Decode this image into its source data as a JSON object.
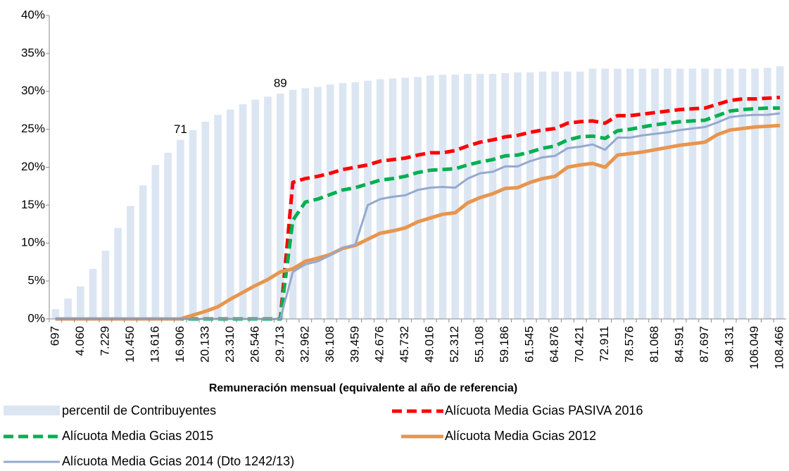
{
  "chart_data": {
    "type": "combo",
    "xlabel": "Remuneración mensual (equivalente al año de referencia)",
    "categories": [
      "697",
      null,
      "4.060",
      null,
      "7.229",
      null,
      "10.450",
      null,
      "13.616",
      null,
      "16.906",
      null,
      "20.133",
      null,
      "23.310",
      null,
      "26.546",
      null,
      "29.713",
      null,
      "32.962",
      null,
      "36.108",
      null,
      "39.459",
      null,
      "42.676",
      null,
      "45.732",
      null,
      "49.016",
      null,
      "52.312",
      null,
      "55.108",
      null,
      "59.186",
      null,
      "61.545",
      null,
      "64.876",
      null,
      "70.421",
      null,
      "72.911",
      null,
      "78.576",
      null,
      "81.068",
      null,
      "84.591",
      null,
      "87.697",
      null,
      "98.131",
      null,
      "106.049",
      null,
      "108.466"
    ],
    "ylim": [
      0,
      40
    ],
    "yticks": [
      {
        "value": 0,
        "label": "0%"
      },
      {
        "value": 5,
        "label": "5%"
      },
      {
        "value": 10,
        "label": "10%"
      },
      {
        "value": 15,
        "label": "15%"
      },
      {
        "value": 20,
        "label": "20%"
      },
      {
        "value": 25,
        "label": "25%"
      },
      {
        "value": 30,
        "label": "30%"
      },
      {
        "value": 35,
        "label": "35%"
      },
      {
        "value": 40,
        "label": "40%"
      }
    ],
    "series": [
      {
        "name": "percentil de Contribuyentes",
        "type": "bar",
        "color": "#dce6f2",
        "values": [
          1.3,
          2.7,
          4.3,
          6.6,
          9.0,
          12.0,
          14.9,
          17.6,
          20.3,
          21.9,
          23.6,
          24.9,
          26.0,
          26.9,
          27.6,
          28.3,
          28.9,
          29.3,
          29.7,
          30.2,
          30.4,
          30.6,
          30.9,
          31.1,
          31.2,
          31.4,
          31.6,
          31.7,
          31.8,
          31.9,
          32.1,
          32.2,
          32.2,
          32.3,
          32.3,
          32.3,
          32.4,
          32.5,
          32.5,
          32.6,
          32.6,
          32.6,
          32.6,
          33.0,
          33.0,
          33.0,
          33.0,
          33.0,
          33.0,
          33.0,
          33.0,
          33.0,
          33.0,
          33.0,
          33.0,
          33.0,
          33.0,
          33.1,
          33.3
        ]
      },
      {
        "name": "Alícuota Media Gcias PASIVA 2016",
        "type": "line",
        "dashed": true,
        "color": "#ff0000",
        "values": [
          0,
          0,
          0,
          0,
          0,
          0,
          0,
          0,
          0,
          0,
          0,
          0,
          0,
          0,
          0,
          0,
          0,
          0,
          0,
          18.0,
          18.5,
          18.8,
          19.2,
          19.7,
          20.0,
          20.3,
          20.8,
          21.0,
          21.2,
          21.6,
          21.9,
          21.9,
          22.2,
          22.8,
          23.3,
          23.6,
          24.0,
          24.2,
          24.6,
          24.9,
          25.1,
          25.8,
          26.0,
          26.1,
          25.8,
          26.8,
          26.8,
          27.0,
          27.2,
          27.4,
          27.6,
          27.7,
          27.8,
          28.3,
          28.8,
          29.0,
          29.0,
          29.1,
          29.2
        ]
      },
      {
        "name": "Alícuota Media Gcias 2015",
        "type": "line",
        "dashed": true,
        "color": "#00b050",
        "values": [
          0,
          0,
          0,
          0,
          0,
          0,
          0,
          0,
          0,
          0,
          0,
          0,
          0,
          0,
          0,
          0,
          0,
          0,
          0,
          13.0,
          15.4,
          15.8,
          16.4,
          17.0,
          17.3,
          17.8,
          18.3,
          18.5,
          18.8,
          19.3,
          19.6,
          19.7,
          19.8,
          20.3,
          20.7,
          21.0,
          21.5,
          21.6,
          22.0,
          22.5,
          22.8,
          23.6,
          24.0,
          24.1,
          23.8,
          24.8,
          25.0,
          25.3,
          25.6,
          25.8,
          26.0,
          26.1,
          26.2,
          26.8,
          27.4,
          27.6,
          27.7,
          27.8,
          27.8
        ]
      },
      {
        "name": "Alícuota Media Gcias 2012",
        "type": "line",
        "dashed": false,
        "color": "#e8954f",
        "values": [
          0,
          0,
          0,
          0,
          0,
          0,
          0,
          0,
          0,
          0,
          0,
          0.5,
          1.0,
          1.6,
          2.6,
          3.5,
          4.4,
          5.2,
          6.2,
          6.6,
          7.6,
          8.0,
          8.5,
          9.3,
          9.7,
          10.5,
          11.3,
          11.6,
          12.0,
          12.8,
          13.3,
          13.8,
          14.0,
          15.3,
          16.0,
          16.5,
          17.2,
          17.3,
          18.0,
          18.5,
          18.8,
          20.0,
          20.3,
          20.5,
          20.0,
          21.6,
          21.8,
          22.0,
          22.3,
          22.6,
          22.9,
          23.1,
          23.3,
          24.3,
          24.9,
          25.1,
          25.3,
          25.4,
          25.5
        ]
      },
      {
        "name": "Alícuota Media Gcias 2014 (Dto 1242/13)",
        "type": "line",
        "dashed": false,
        "color": "#95a9cd",
        "values": [
          0,
          0,
          0,
          0,
          0,
          0,
          0,
          0,
          0,
          0,
          0,
          0,
          0,
          0,
          0,
          0,
          0,
          0,
          0,
          6.2,
          7.2,
          7.6,
          8.4,
          9.4,
          9.8,
          15.0,
          15.8,
          16.1,
          16.3,
          17.0,
          17.3,
          17.4,
          17.3,
          18.5,
          19.2,
          19.4,
          20.1,
          20.1,
          20.8,
          21.3,
          21.5,
          22.5,
          22.7,
          23.0,
          22.3,
          23.9,
          23.9,
          24.2,
          24.4,
          24.6,
          24.9,
          25.1,
          25.3,
          25.9,
          26.6,
          26.8,
          26.9,
          26.9,
          27.1
        ]
      }
    ],
    "annotations": [
      {
        "text": "71",
        "category": "16.906"
      },
      {
        "text": "89",
        "category": "29.713"
      }
    ]
  }
}
